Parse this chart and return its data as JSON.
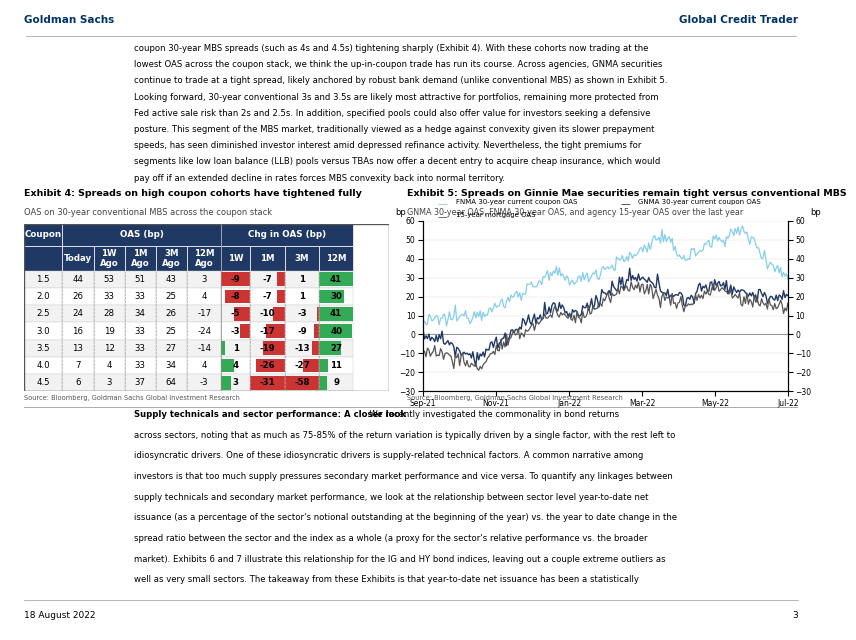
{
  "header_left": "Goldman Sachs",
  "header_right": "Global Credit Trader",
  "page_number": "3",
  "date_footer": "18 August 2022",
  "body_text_top": [
    "coupon 30-year MBS spreads (such as 4s and 4.5s) tightening sharply (Exhibit 4). With these cohorts now trading at the",
    "lowest OAS across the coupon stack, we think the up-in-coupon trade has run its course. Across agencies, GNMA securities",
    "continue to trade at a tight spread, likely anchored by robust bank demand (unlike conventional MBS) as shown in Exhibit 5.",
    "Looking forward, 30-year conventional 3s and 3.5s are likely most attractive for portfolios, remaining more protected from",
    "Fed active sale risk than 2s and 2.5s. In addition, specified pools could also offer value for investors seeking a defensive",
    "posture. This segment of the MBS market, traditionally viewed as a hedge against convexity given its slower prepayment",
    "speeds, has seen diminished investor interest amid depressed refinance activity. Nevertheless, the tight premiums for",
    "segments like low loan balance (LLB) pools versus TBAs now offer a decent entry to acquire cheap insurance, which would",
    "pay off if an extended decline in rates forces MBS convexity back into normal territory."
  ],
  "exhibit4_title": "Exhibit 4: Spreads on high coupon cohorts have tightened fully",
  "exhibit4_subtitle": "OAS on 30-year conventional MBS across the coupon stack",
  "table_header_oas": "OAS (bp)",
  "table_header_chg": "Chg in OAS (bp)",
  "table_data": [
    [
      1.5,
      44,
      53,
      51,
      43,
      3,
      -9,
      -7,
      1,
      41
    ],
    [
      2.0,
      26,
      33,
      33,
      25,
      4,
      -8,
      -7,
      1,
      30
    ],
    [
      2.5,
      24,
      28,
      34,
      26,
      -17,
      -5,
      -10,
      -3,
      41
    ],
    [
      3.0,
      16,
      19,
      33,
      25,
      -24,
      -3,
      -17,
      -9,
      40
    ],
    [
      3.5,
      13,
      12,
      33,
      27,
      -14,
      1,
      -19,
      -13,
      27
    ],
    [
      4.0,
      7,
      4,
      33,
      34,
      4,
      4,
      -26,
      -27,
      11
    ],
    [
      4.5,
      6,
      3,
      37,
      64,
      -3,
      3,
      -31,
      -58,
      9
    ]
  ],
  "exhibit5_title": "Exhibit 5: Spreads on Ginnie Mae securities remain tight versus conventional MBS",
  "exhibit5_subtitle": "GNMA 30-year OAS, FNMA 30-year OAS, and agency 15-year OAS over the last year",
  "exhibit5_legend": [
    "FNMA 30-year current coupon OAS",
    "GNMA 30-year current coupon OAS",
    "15-year mortgage OAS"
  ],
  "exhibit5_legend_colors": [
    "#87CEEB",
    "#1F3864",
    "#555555"
  ],
  "exhibit5_ylim": [
    -30,
    60
  ],
  "exhibit5_yticks": [
    -30,
    -20,
    -10,
    0,
    10,
    20,
    30,
    40,
    50,
    60
  ],
  "exhibit5_xlabel_ticks": [
    "Sep-21",
    "Nov-21",
    "Jan-22",
    "Mar-22",
    "May-22",
    "Jul-22"
  ],
  "source_text": "Source: Bloomberg, Goldman Sachs Global Investment Research",
  "body_text_bottom_bold": "Supply technicals and sector performance: A closer look",
  "body_text_bottom": [
    ". We recently investigated the commonality in bond returns",
    "across sectors, noting that as much as 75-85% of the return variation is typically driven by a single factor, with the rest left to",
    "idiosyncratic drivers. One of these idiosyncratic drivers is supply-related technical factors. A common narrative among",
    "investors is that too much supply pressures secondary market performance and vice versa. To quantify any linkages between",
    "supply technicals and secondary market performance, we look at the relationship between sector level year-to-date net",
    "issuance (as a percentage of the sector's notional outstanding at the beginning of the year) vs. the year to date change in the",
    "spread ratio between the sector and the index as a whole (a proxy for the sector's relative performance vs. the broader",
    "market). Exhibits 6 and 7 illustrate this relationship for the IG and HY bond indices, leaving out a couple extreme outliers as",
    "well as very small sectors. The takeaway from these Exhibits is that year-to-date net issuance has been a statistically"
  ],
  "header_color": "#003366",
  "table_header_bg": "#1F3864",
  "cell_red": "#cc3333",
  "cell_green": "#33aa55",
  "page_bg": "#ffffff"
}
